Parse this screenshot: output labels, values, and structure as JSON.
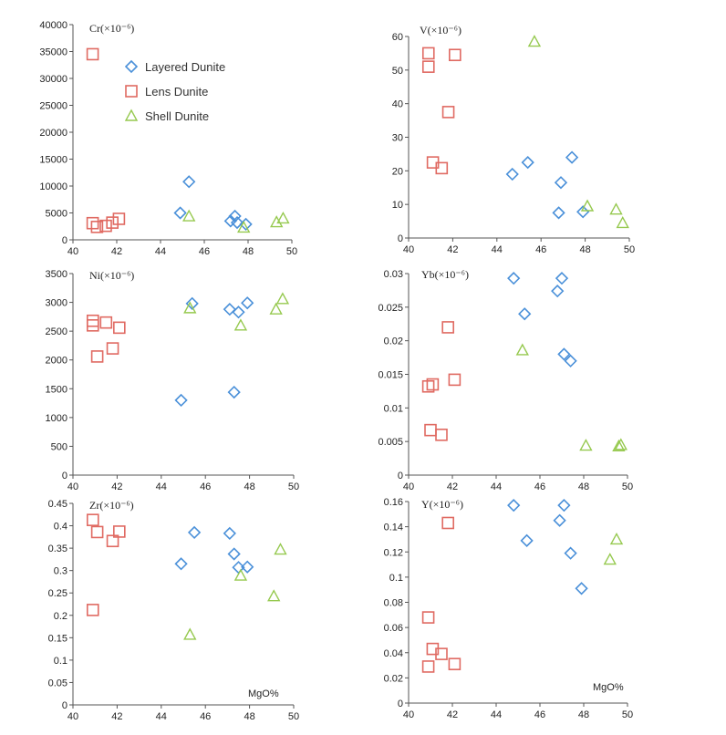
{
  "figure": {
    "series_styles": [
      {
        "name": "Layered Dunite",
        "marker": "diamond",
        "color": "#4a90d9"
      },
      {
        "name": "Lens Dunite",
        "marker": "square",
        "color": "#e06a62"
      },
      {
        "name": "Shell Dunite",
        "marker": "triangle",
        "color": "#96c94f"
      }
    ],
    "mgo_label": "MgO%"
  },
  "chart_data": [
    {
      "type": "scatter",
      "title": "Cr(×10⁻⁶)",
      "xlim": [
        40,
        50
      ],
      "xticks": [
        40,
        42,
        44,
        46,
        48,
        50
      ],
      "ylim": [
        0,
        40000
      ],
      "yticks": [
        0,
        5000,
        10000,
        15000,
        20000,
        25000,
        30000,
        35000,
        40000
      ],
      "legend": "top-left",
      "xlabel": "",
      "series": [
        {
          "name": "Layered Dunite",
          "points": [
            [
              44.9,
              5000
            ],
            [
              45.3,
              10800
            ],
            [
              47.2,
              3500
            ],
            [
              47.4,
              4400
            ],
            [
              47.5,
              3200
            ],
            [
              47.9,
              2900
            ]
          ]
        },
        {
          "name": "Lens Dunite",
          "points": [
            [
              40.9,
              34500
            ],
            [
              40.9,
              3100
            ],
            [
              41.1,
              2400
            ],
            [
              41.5,
              2600
            ],
            [
              41.8,
              3200
            ],
            [
              42.1,
              3900
            ]
          ]
        },
        {
          "name": "Shell Dunite",
          "points": [
            [
              45.3,
              4400
            ],
            [
              47.8,
              2300
            ],
            [
              49.3,
              3300
            ],
            [
              49.6,
              4000
            ]
          ]
        }
      ]
    },
    {
      "type": "scatter",
      "title": "V(×10⁻⁶)",
      "xlim": [
        40,
        50
      ],
      "xticks": [
        40,
        42,
        44,
        46,
        48,
        50
      ],
      "ylim": [
        0,
        60
      ],
      "yticks": [
        0,
        10,
        20,
        30,
        40,
        50,
        60
      ],
      "xlabel": "",
      "series": [
        {
          "name": "Layered Dunite",
          "points": [
            [
              44.7,
              19
            ],
            [
              45.4,
              22.5
            ],
            [
              46.8,
              7.5
            ],
            [
              46.9,
              16.5
            ],
            [
              47.4,
              24
            ],
            [
              47.9,
              7.8
            ]
          ]
        },
        {
          "name": "Lens Dunite",
          "points": [
            [
              40.9,
              55
            ],
            [
              40.9,
              51
            ],
            [
              41.1,
              22.5
            ],
            [
              41.5,
              20.8
            ],
            [
              41.8,
              37.5
            ],
            [
              42.1,
              54.5
            ]
          ]
        },
        {
          "name": "Shell Dunite",
          "points": [
            [
              45.7,
              58.5
            ],
            [
              48.1,
              9.5
            ],
            [
              49.4,
              8.5
            ],
            [
              49.7,
              4.5
            ]
          ]
        }
      ]
    },
    {
      "type": "scatter",
      "title": "Ni(×10⁻⁶)",
      "xlim": [
        40,
        50
      ],
      "xticks": [
        40,
        42,
        44,
        46,
        48,
        50
      ],
      "ylim": [
        0,
        3500
      ],
      "yticks": [
        0,
        500,
        1000,
        1500,
        2000,
        2500,
        3000,
        3500
      ],
      "xlabel": "",
      "series": [
        {
          "name": "Layered Dunite",
          "points": [
            [
              44.9,
              1300
            ],
            [
              45.4,
              2980
            ],
            [
              47.1,
              2880
            ],
            [
              47.3,
              1440
            ],
            [
              47.5,
              2830
            ],
            [
              47.9,
              2990
            ]
          ]
        },
        {
          "name": "Lens Dunite",
          "points": [
            [
              40.9,
              2680
            ],
            [
              40.9,
              2600
            ],
            [
              41.1,
              2060
            ],
            [
              41.5,
              2650
            ],
            [
              41.8,
              2200
            ],
            [
              42.1,
              2560
            ]
          ]
        },
        {
          "name": "Shell Dunite",
          "points": [
            [
              45.3,
              2900
            ],
            [
              47.6,
              2600
            ],
            [
              49.2,
              2880
            ],
            [
              49.5,
              3060
            ]
          ]
        }
      ]
    },
    {
      "type": "scatter",
      "title": "Yb(×10⁻⁶)",
      "xlim": [
        40,
        50
      ],
      "xticks": [
        40,
        42,
        44,
        46,
        48,
        50
      ],
      "ylim": [
        0,
        0.03
      ],
      "yticks": [
        0,
        0.005,
        0.01,
        0.015,
        0.02,
        0.025,
        0.03
      ],
      "xlabel": "",
      "series": [
        {
          "name": "Layered Dunite",
          "points": [
            [
              44.8,
              0.0293
            ],
            [
              45.3,
              0.024
            ],
            [
              46.8,
              0.0274
            ],
            [
              47.0,
              0.0293
            ],
            [
              47.1,
              0.018
            ],
            [
              47.4,
              0.017
            ]
          ]
        },
        {
          "name": "Lens Dunite",
          "points": [
            [
              40.9,
              0.0132
            ],
            [
              41.0,
              0.0067
            ],
            [
              41.1,
              0.0135
            ],
            [
              41.5,
              0.006
            ],
            [
              41.8,
              0.022
            ],
            [
              42.1,
              0.0142
            ]
          ]
        },
        {
          "name": "Shell Dunite",
          "points": [
            [
              45.2,
              0.0186
            ],
            [
              48.1,
              0.0044
            ],
            [
              49.6,
              0.0043
            ],
            [
              49.7,
              0.0045
            ]
          ]
        }
      ]
    },
    {
      "type": "scatter",
      "title": "Zr(×10⁻⁶)",
      "xlim": [
        40,
        50
      ],
      "xticks": [
        40,
        42,
        44,
        46,
        48,
        50
      ],
      "ylim": [
        0,
        0.45
      ],
      "yticks": [
        0,
        0.05,
        0.1,
        0.15,
        0.2,
        0.25,
        0.3,
        0.35,
        0.4,
        0.45
      ],
      "xlabel": "MgO%",
      "series": [
        {
          "name": "Layered Dunite",
          "points": [
            [
              44.9,
              0.315
            ],
            [
              45.5,
              0.385
            ],
            [
              47.1,
              0.383
            ],
            [
              47.3,
              0.337
            ],
            [
              47.5,
              0.307
            ],
            [
              47.9,
              0.308
            ]
          ]
        },
        {
          "name": "Lens Dunite",
          "points": [
            [
              40.9,
              0.413
            ],
            [
              40.9,
              0.212
            ],
            [
              41.1,
              0.386
            ],
            [
              41.8,
              0.366
            ],
            [
              42.1,
              0.387
            ]
          ]
        },
        {
          "name": "Shell Dunite",
          "points": [
            [
              45.3,
              0.157
            ],
            [
              47.6,
              0.289
            ],
            [
              49.1,
              0.243
            ],
            [
              49.4,
              0.347
            ]
          ]
        }
      ]
    },
    {
      "type": "scatter",
      "title": "Y(×10⁻⁶)",
      "xlim": [
        40,
        50
      ],
      "xticks": [
        40,
        42,
        44,
        46,
        48,
        50
      ],
      "ylim": [
        0,
        0.16
      ],
      "yticks": [
        0,
        0.02,
        0.04,
        0.06,
        0.08,
        0.1,
        0.12,
        0.14,
        0.16
      ],
      "xlabel": "MgO%",
      "series": [
        {
          "name": "Layered Dunite",
          "points": [
            [
              44.8,
              0.157
            ],
            [
              45.4,
              0.129
            ],
            [
              46.9,
              0.145
            ],
            [
              47.1,
              0.157
            ],
            [
              47.4,
              0.119
            ],
            [
              47.9,
              0.091
            ]
          ]
        },
        {
          "name": "Lens Dunite",
          "points": [
            [
              40.9,
              0.068
            ],
            [
              40.9,
              0.029
            ],
            [
              41.1,
              0.043
            ],
            [
              41.5,
              0.039
            ],
            [
              41.8,
              0.143
            ],
            [
              42.1,
              0.031
            ]
          ]
        },
        {
          "name": "Shell Dunite",
          "points": [
            [
              49.2,
              0.114
            ],
            [
              49.5,
              0.13
            ]
          ]
        }
      ]
    }
  ]
}
